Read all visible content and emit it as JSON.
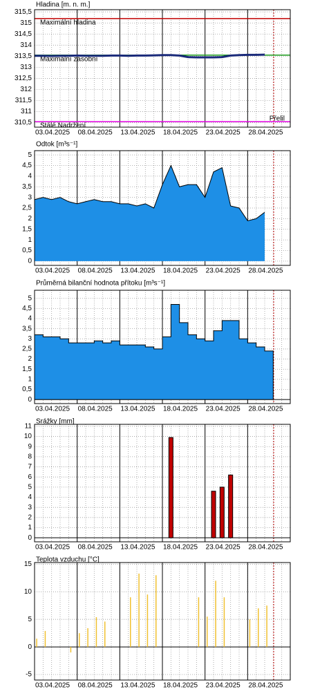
{
  "chart_data": [
    {
      "type": "line",
      "title": "Hladina [m. n. m.]",
      "color": "#1a2a7a",
      "x": [
        "03.04.2025",
        "04.04.2025",
        "05.04.2025",
        "06.04.2025",
        "07.04.2025",
        "08.04.2025",
        "09.04.2025",
        "10.04.2025",
        "11.04.2025",
        "12.04.2025",
        "13.04.2025",
        "14.04.2025",
        "15.04.2025",
        "16.04.2025",
        "17.04.2025",
        "18.04.2025",
        "19.04.2025",
        "20.04.2025",
        "21.04.2025",
        "22.04.2025",
        "23.04.2025",
        "24.04.2025",
        "25.04.2025",
        "26.04.2025",
        "27.04.2025",
        "28.04.2025",
        "29.04.2025",
        "30.04.2025"
      ],
      "values": [
        313.52,
        313.52,
        313.51,
        313.52,
        313.52,
        313.53,
        313.52,
        313.52,
        313.52,
        313.53,
        313.53,
        313.52,
        313.53,
        313.53,
        313.54,
        313.55,
        313.55,
        313.53,
        313.46,
        313.45,
        313.45,
        313.45,
        313.46,
        313.53,
        313.55,
        313.56,
        313.56,
        313.57
      ],
      "reference_lines": [
        {
          "name": "Maximální hladina",
          "value": 315.2,
          "color": "#c00000"
        },
        {
          "name": "Maximální zásobní",
          "value": 313.55,
          "color": "#1a9a1a"
        },
        {
          "name": "Stálé Nadržení",
          "value": 310.55,
          "color": "#e000e0"
        }
      ],
      "annotations": [
        {
          "text": "Přelil",
          "color": "#ff8c00"
        }
      ],
      "xlim": [
        "03.04.2025",
        "03.05.2025"
      ],
      "xticks": [
        "03.04.2025",
        "08.04.2025",
        "13.04.2025",
        "18.04.2025",
        "23.04.2025",
        "28.04.2025"
      ],
      "ylim": [
        310.3,
        315.6
      ],
      "yticks": [
        {
          "value": 310.5,
          "label": "310,5"
        },
        311,
        {
          "value": 311.5,
          "label": "311,5"
        },
        312,
        {
          "value": 312.5,
          "label": "312,5"
        },
        313,
        {
          "value": 313.5,
          "label": "313,5"
        },
        314,
        {
          "value": 314.5,
          "label": "314,5"
        },
        315,
        {
          "value": 315.5,
          "label": "315,5"
        }
      ],
      "grid": true
    },
    {
      "type": "area",
      "title": "Odtok [m³s⁻¹]",
      "color": "#1e8fe6",
      "x": [
        "03.04.2025",
        "04.04.2025",
        "05.04.2025",
        "06.04.2025",
        "07.04.2025",
        "08.04.2025",
        "09.04.2025",
        "10.04.2025",
        "11.04.2025",
        "12.04.2025",
        "13.04.2025",
        "14.04.2025",
        "15.04.2025",
        "16.04.2025",
        "17.04.2025",
        "18.04.2025",
        "19.04.2025",
        "20.04.2025",
        "21.04.2025",
        "22.04.2025",
        "23.04.2025",
        "24.04.2025",
        "25.04.2025",
        "26.04.2025",
        "27.04.2025",
        "28.04.2025",
        "29.04.2025",
        "30.04.2025"
      ],
      "values": [
        2.9,
        3.0,
        2.9,
        3.0,
        2.8,
        2.7,
        2.8,
        2.9,
        2.8,
        2.8,
        2.7,
        2.7,
        2.6,
        2.7,
        2.5,
        3.6,
        4.5,
        3.5,
        3.6,
        3.6,
        3.0,
        4.2,
        4.4,
        2.6,
        2.5,
        1.9,
        2.0,
        2.3
      ],
      "xlim": [
        "03.04.2025",
        "03.05.2025"
      ],
      "xticks": [
        "03.04.2025",
        "08.04.2025",
        "13.04.2025",
        "18.04.2025",
        "23.04.2025",
        "28.04.2025"
      ],
      "ylim": [
        -0.2,
        5.2
      ],
      "yticks": [
        0,
        {
          "value": 0.5,
          "label": "0,5"
        },
        1,
        {
          "value": 1.5,
          "label": "1,5"
        },
        2,
        {
          "value": 2.5,
          "label": "2,5"
        },
        3,
        {
          "value": 3.5,
          "label": "3,5"
        },
        4,
        {
          "value": 4.5,
          "label": "4,5"
        },
        5
      ],
      "grid": true
    },
    {
      "type": "step-area",
      "title": "Průměrná bilanční hodnota přítoku  [m³s⁻¹]",
      "color": "#1e8fe6",
      "x": [
        "03.04.2025",
        "04.04.2025",
        "05.04.2025",
        "06.04.2025",
        "07.04.2025",
        "08.04.2025",
        "09.04.2025",
        "10.04.2025",
        "11.04.2025",
        "12.04.2025",
        "13.04.2025",
        "14.04.2025",
        "15.04.2025",
        "16.04.2025",
        "17.04.2025",
        "18.04.2025",
        "19.04.2025",
        "20.04.2025",
        "21.04.2025",
        "22.04.2025",
        "23.04.2025",
        "24.04.2025",
        "25.04.2025",
        "26.04.2025",
        "27.04.2025",
        "28.04.2025",
        "29.04.2025",
        "30.04.2025"
      ],
      "values": [
        3.2,
        3.1,
        3.1,
        3.0,
        2.8,
        2.8,
        2.8,
        2.9,
        2.8,
        2.9,
        2.7,
        2.7,
        2.7,
        2.6,
        2.5,
        3.1,
        4.7,
        3.8,
        3.2,
        3.0,
        2.9,
        3.4,
        3.9,
        3.9,
        3.0,
        2.8,
        2.6,
        2.4
      ],
      "xlim": [
        "03.04.2025",
        "03.05.2025"
      ],
      "xticks": [
        "03.04.2025",
        "08.04.2025",
        "13.04.2025",
        "18.04.2025",
        "23.04.2025",
        "28.04.2025"
      ],
      "ylim": [
        -0.2,
        5.4
      ],
      "yticks": [
        0,
        {
          "value": 0.5,
          "label": "0,5"
        },
        1,
        {
          "value": 1.5,
          "label": "1,5"
        },
        2,
        {
          "value": 2.5,
          "label": "2,5"
        },
        3,
        {
          "value": 3.5,
          "label": "3,5"
        },
        4,
        {
          "value": 4.5,
          "label": "4,5"
        },
        5
      ],
      "grid": true
    },
    {
      "type": "bar",
      "title": "Srážky [mm]",
      "color": "#c00000",
      "x": [
        "19.04.2025",
        "24.04.2025",
        "25.04.2025",
        "26.04.2025"
      ],
      "values": [
        9.9,
        4.6,
        5.0,
        6.2
      ],
      "xlim": [
        "03.04.2025",
        "03.05.2025"
      ],
      "xticks": [
        "03.04.2025",
        "08.04.2025",
        "13.04.2025",
        "18.04.2025",
        "23.04.2025",
        "28.04.2025"
      ],
      "ylim": [
        -0.4,
        11.2
      ],
      "yticks": [
        0,
        1,
        2,
        3,
        4,
        5,
        6,
        7,
        8,
        9,
        10,
        11
      ],
      "grid": true
    },
    {
      "type": "bar",
      "title": "Teplota vzduchu [°C]",
      "color": "#f0c030",
      "x": [
        "03.04.2025",
        "04.04.2025",
        "07.04.2025",
        "08.04.2025",
        "09.04.2025",
        "10.04.2025",
        "11.04.2025",
        "14.04.2025",
        "15.04.2025",
        "16.04.2025",
        "17.04.2025",
        "22.04.2025",
        "23.04.2025",
        "24.04.2025",
        "25.04.2025",
        "28.04.2025",
        "29.04.2025",
        "30.04.2025"
      ],
      "values": [
        1.5,
        2.9,
        -1.0,
        2.5,
        3.4,
        5.4,
        4.6,
        9.0,
        13.3,
        9.5,
        13.0,
        9.0,
        5.5,
        12.0,
        9.0,
        5.0,
        7.0,
        7.5
      ],
      "xlim": [
        "03.04.2025",
        "03.05.2025"
      ],
      "xticks": [
        "03.04.2025",
        "08.04.2025",
        "13.04.2025",
        "18.04.2025",
        "23.04.2025",
        "28.04.2025"
      ],
      "ylim": [
        -6,
        15.3
      ],
      "yticks": [
        -5,
        0,
        5,
        10,
        15
      ],
      "grid": true
    }
  ]
}
